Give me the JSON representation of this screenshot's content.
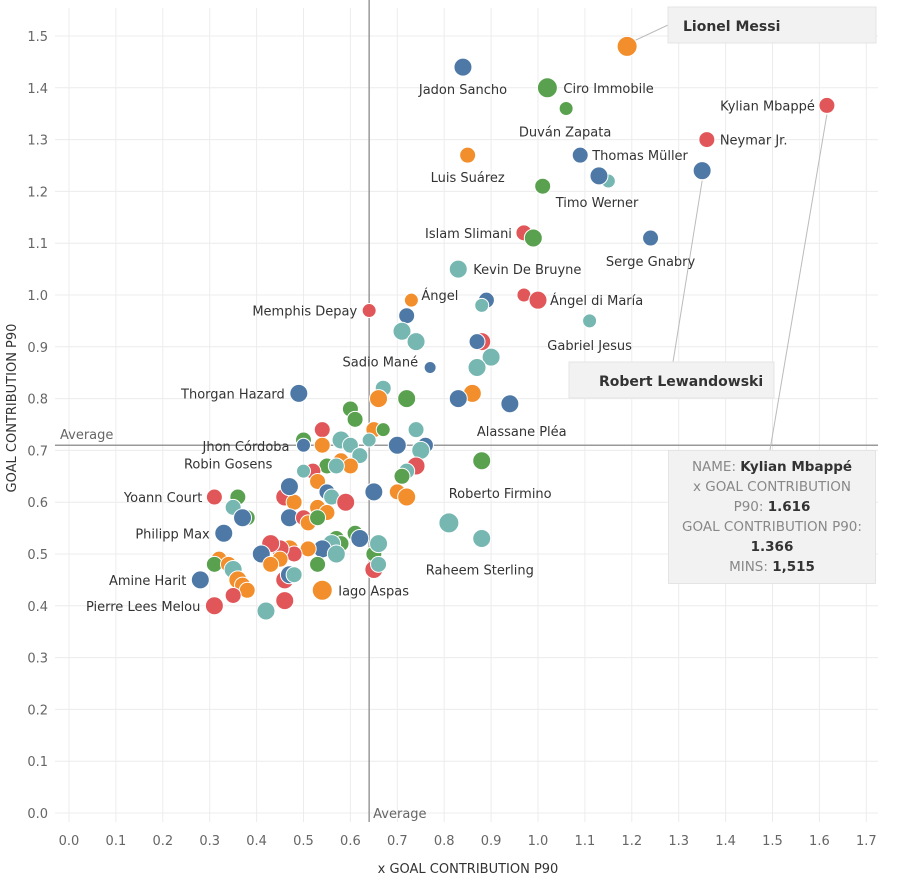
{
  "chart_data": {
    "type": "scatter",
    "title": "",
    "xlabel": "x GOAL CONTRIBUTION P90",
    "ylabel": "GOAL CONTRIBUTION P90",
    "xlim": [
      -0.03,
      1.72
    ],
    "ylim": [
      -0.02,
      1.56
    ],
    "x_ticks": [
      "0.0",
      "0.1",
      "0.2",
      "0.3",
      "0.4",
      "0.5",
      "0.6",
      "0.7",
      "0.8",
      "0.9",
      "1.0",
      "1.1",
      "1.2",
      "1.3",
      "1.4",
      "1.5",
      "1.6",
      "1.7"
    ],
    "y_ticks": [
      "0.0",
      "0.1",
      "0.2",
      "0.3",
      "0.4",
      "0.5",
      "0.6",
      "0.7",
      "0.8",
      "0.9",
      "1.0",
      "1.1",
      "1.2",
      "1.3",
      "1.4",
      "1.5"
    ],
    "grid": true,
    "reference_lines": {
      "x": {
        "value": 0.64,
        "label": "Average"
      },
      "y": {
        "value": 0.71,
        "label": "Average"
      }
    },
    "colors": {
      "orange": "#f28e2b",
      "blue": "#4e79a7",
      "red": "#e15759",
      "green": "#59a14f",
      "teal": "#76b7b2"
    },
    "labeled_points": [
      {
        "name": "Lionel Messi",
        "x": 1.19,
        "y": 1.48,
        "color": "#f28e2b",
        "size": 10
      },
      {
        "name": "Jadon Sancho",
        "x": 0.84,
        "y": 1.44,
        "color": "#4e79a7",
        "size": 9
      },
      {
        "name": "Ciro Immobile",
        "x": 1.02,
        "y": 1.4,
        "color": "#59a14f",
        "size": 10
      },
      {
        "name": "Kylian Mbappé",
        "x": 1.616,
        "y": 1.366,
        "color": "#e15759",
        "size": 8
      },
      {
        "name": "Duván Zapata",
        "x": 1.06,
        "y": 1.36,
        "color": "#59a14f",
        "size": 7
      },
      {
        "name": "Neymar Jr.",
        "x": 1.36,
        "y": 1.3,
        "color": "#e15759",
        "size": 8
      },
      {
        "name": "Thomas Müller",
        "x": 1.09,
        "y": 1.27,
        "color": "#4e79a7",
        "size": 8
      },
      {
        "name": "Luis Suárez",
        "x": 0.85,
        "y": 1.27,
        "color": "#f28e2b",
        "size": 8
      },
      {
        "name": "Timo Werner",
        "x": 1.01,
        "y": 1.21,
        "color": "#59a14f",
        "size": 8
      },
      {
        "name": "Islam Slimani",
        "x": 0.97,
        "y": 1.12,
        "color": "#e15759",
        "size": 8
      },
      {
        "name": "Serge Gnabry",
        "x": 1.24,
        "y": 1.11,
        "color": "#4e79a7",
        "size": 8
      },
      {
        "name": "Kevin De Bruyne",
        "x": 0.83,
        "y": 1.05,
        "color": "#76b7b2",
        "size": 9
      },
      {
        "name": "Ángel",
        "x": 0.73,
        "y": 0.99,
        "color": "#f28e2b",
        "size": 7
      },
      {
        "name": "Ángel di María",
        "x": 1.0,
        "y": 0.99,
        "color": "#e15759",
        "size": 9
      },
      {
        "name": "Memphis Depay",
        "x": 0.64,
        "y": 0.97,
        "color": "#e15759",
        "size": 7
      },
      {
        "name": "Gabriel Jesus",
        "x": 1.11,
        "y": 0.95,
        "color": "#76b7b2",
        "size": 7
      },
      {
        "name": "Sadio Mané",
        "x": 0.77,
        "y": 0.86,
        "color": "#4e79a7",
        "size": 6
      },
      {
        "name": "Thorgan Hazard",
        "x": 0.49,
        "y": 0.81,
        "color": "#4e79a7",
        "size": 9
      },
      {
        "name": "Alassane Pléa",
        "x": 0.94,
        "y": 0.79,
        "color": "#4e79a7",
        "size": 9
      },
      {
        "name": "Jhon Córdoba",
        "x": 0.5,
        "y": 0.71,
        "color": "#4e79a7",
        "size": 7
      },
      {
        "name": "Robin Gosens",
        "x": 0.47,
        "y": 0.63,
        "color": "#4e79a7",
        "size": 9
      },
      {
        "name": "Yoann Court",
        "x": 0.31,
        "y": 0.61,
        "color": "#e15759",
        "size": 8
      },
      {
        "name": "Roberto Firmino",
        "x": 0.88,
        "y": 0.68,
        "color": "#59a14f",
        "size": 9
      },
      {
        "name": "Philipp Max",
        "x": 0.33,
        "y": 0.54,
        "color": "#4e79a7",
        "size": 9
      },
      {
        "name": "Raheem Sterling",
        "x": 0.88,
        "y": 0.53,
        "color": "#76b7b2",
        "size": 9
      },
      {
        "name": "Amine Harit",
        "x": 0.28,
        "y": 0.45,
        "color": "#4e79a7",
        "size": 9
      },
      {
        "name": "Iago Aspas",
        "x": 0.54,
        "y": 0.43,
        "color": "#f28e2b",
        "size": 10
      },
      {
        "name": "Pierre Lees Melou",
        "x": 0.31,
        "y": 0.4,
        "color": "#e15759",
        "size": 9
      },
      {
        "name": "Robert Lewandowski",
        "x": 1.35,
        "y": 1.24,
        "color": "#4e79a7",
        "size": 9
      },
      {
        "name": "",
        "x": 1.15,
        "y": 1.22,
        "color": "#76b7b2",
        "size": 7
      },
      {
        "name": "",
        "x": 1.13,
        "y": 1.23,
        "color": "#4e79a7",
        "size": 9
      },
      {
        "name": "",
        "x": 0.99,
        "y": 1.11,
        "color": "#59a14f",
        "size": 9
      }
    ],
    "other_points": [
      {
        "x": 0.89,
        "y": 0.99,
        "color": "#4e79a7",
        "size": 8
      },
      {
        "x": 0.97,
        "y": 1.0,
        "color": "#e15759",
        "size": 7
      },
      {
        "x": 0.88,
        "y": 0.98,
        "color": "#76b7b2",
        "size": 7
      },
      {
        "x": 0.72,
        "y": 0.96,
        "color": "#4e79a7",
        "size": 8
      },
      {
        "x": 0.71,
        "y": 0.93,
        "color": "#76b7b2",
        "size": 9
      },
      {
        "x": 0.74,
        "y": 0.91,
        "color": "#76b7b2",
        "size": 9
      },
      {
        "x": 0.88,
        "y": 0.91,
        "color": "#e15759",
        "size": 9
      },
      {
        "x": 0.87,
        "y": 0.91,
        "color": "#4e79a7",
        "size": 8
      },
      {
        "x": 0.9,
        "y": 0.88,
        "color": "#76b7b2",
        "size": 9
      },
      {
        "x": 0.87,
        "y": 0.86,
        "color": "#76b7b2",
        "size": 9
      },
      {
        "x": 0.67,
        "y": 0.82,
        "color": "#76b7b2",
        "size": 8
      },
      {
        "x": 0.86,
        "y": 0.81,
        "color": "#f28e2b",
        "size": 9
      },
      {
        "x": 0.66,
        "y": 0.8,
        "color": "#f28e2b",
        "size": 9
      },
      {
        "x": 0.72,
        "y": 0.8,
        "color": "#59a14f",
        "size": 9
      },
      {
        "x": 0.83,
        "y": 0.8,
        "color": "#4e79a7",
        "size": 9
      },
      {
        "x": 0.6,
        "y": 0.78,
        "color": "#59a14f",
        "size": 8
      },
      {
        "x": 0.61,
        "y": 0.76,
        "color": "#59a14f",
        "size": 8
      },
      {
        "x": 0.54,
        "y": 0.74,
        "color": "#e15759",
        "size": 8
      },
      {
        "x": 0.65,
        "y": 0.74,
        "color": "#f28e2b",
        "size": 8
      },
      {
        "x": 0.67,
        "y": 0.74,
        "color": "#59a14f",
        "size": 7
      },
      {
        "x": 0.74,
        "y": 0.74,
        "color": "#76b7b2",
        "size": 8
      },
      {
        "x": 0.5,
        "y": 0.72,
        "color": "#59a14f",
        "size": 8
      },
      {
        "x": 0.58,
        "y": 0.72,
        "color": "#76b7b2",
        "size": 9
      },
      {
        "x": 0.6,
        "y": 0.71,
        "color": "#76b7b2",
        "size": 8
      },
      {
        "x": 0.54,
        "y": 0.71,
        "color": "#f28e2b",
        "size": 8
      },
      {
        "x": 0.64,
        "y": 0.72,
        "color": "#76b7b2",
        "size": 7
      },
      {
        "x": 0.7,
        "y": 0.71,
        "color": "#4e79a7",
        "size": 9
      },
      {
        "x": 0.76,
        "y": 0.71,
        "color": "#4e79a7",
        "size": 8
      },
      {
        "x": 0.75,
        "y": 0.7,
        "color": "#76b7b2",
        "size": 9
      },
      {
        "x": 0.62,
        "y": 0.69,
        "color": "#76b7b2",
        "size": 8
      },
      {
        "x": 0.58,
        "y": 0.68,
        "color": "#f28e2b",
        "size": 8
      },
      {
        "x": 0.55,
        "y": 0.67,
        "color": "#59a14f",
        "size": 8
      },
      {
        "x": 0.52,
        "y": 0.66,
        "color": "#e15759",
        "size": 8
      },
      {
        "x": 0.6,
        "y": 0.67,
        "color": "#f28e2b",
        "size": 8
      },
      {
        "x": 0.57,
        "y": 0.67,
        "color": "#76b7b2",
        "size": 8
      },
      {
        "x": 0.5,
        "y": 0.66,
        "color": "#76b7b2",
        "size": 7
      },
      {
        "x": 0.74,
        "y": 0.67,
        "color": "#e15759",
        "size": 9
      },
      {
        "x": 0.72,
        "y": 0.66,
        "color": "#76b7b2",
        "size": 8
      },
      {
        "x": 0.71,
        "y": 0.65,
        "color": "#59a14f",
        "size": 8
      },
      {
        "x": 0.53,
        "y": 0.64,
        "color": "#f28e2b",
        "size": 8
      },
      {
        "x": 0.7,
        "y": 0.62,
        "color": "#f28e2b",
        "size": 8
      },
      {
        "x": 0.72,
        "y": 0.61,
        "color": "#f28e2b",
        "size": 9
      },
      {
        "x": 0.65,
        "y": 0.62,
        "color": "#4e79a7",
        "size": 9
      },
      {
        "x": 0.55,
        "y": 0.62,
        "color": "#4e79a7",
        "size": 8
      },
      {
        "x": 0.56,
        "y": 0.61,
        "color": "#76b7b2",
        "size": 8
      },
      {
        "x": 0.59,
        "y": 0.6,
        "color": "#e15759",
        "size": 9
      },
      {
        "x": 0.46,
        "y": 0.61,
        "color": "#e15759",
        "size": 9
      },
      {
        "x": 0.48,
        "y": 0.6,
        "color": "#f28e2b",
        "size": 8
      },
      {
        "x": 0.36,
        "y": 0.61,
        "color": "#59a14f",
        "size": 8
      },
      {
        "x": 0.35,
        "y": 0.59,
        "color": "#76b7b2",
        "size": 8
      },
      {
        "x": 0.53,
        "y": 0.59,
        "color": "#f28e2b",
        "size": 8
      },
      {
        "x": 0.55,
        "y": 0.58,
        "color": "#f28e2b",
        "size": 8
      },
      {
        "x": 0.38,
        "y": 0.57,
        "color": "#59a14f",
        "size": 8
      },
      {
        "x": 0.37,
        "y": 0.57,
        "color": "#4e79a7",
        "size": 9
      },
      {
        "x": 0.47,
        "y": 0.57,
        "color": "#4e79a7",
        "size": 9
      },
      {
        "x": 0.5,
        "y": 0.57,
        "color": "#e15759",
        "size": 8
      },
      {
        "x": 0.51,
        "y": 0.56,
        "color": "#f28e2b",
        "size": 8
      },
      {
        "x": 0.53,
        "y": 0.57,
        "color": "#59a14f",
        "size": 8
      },
      {
        "x": 0.61,
        "y": 0.54,
        "color": "#59a14f",
        "size": 8
      },
      {
        "x": 0.62,
        "y": 0.53,
        "color": "#4e79a7",
        "size": 9
      },
      {
        "x": 0.57,
        "y": 0.53,
        "color": "#59a14f",
        "size": 8
      },
      {
        "x": 0.58,
        "y": 0.52,
        "color": "#59a14f",
        "size": 8
      },
      {
        "x": 0.56,
        "y": 0.52,
        "color": "#76b7b2",
        "size": 9
      },
      {
        "x": 0.54,
        "y": 0.51,
        "color": "#4e79a7",
        "size": 9
      },
      {
        "x": 0.51,
        "y": 0.51,
        "color": "#f28e2b",
        "size": 8
      },
      {
        "x": 0.47,
        "y": 0.51,
        "color": "#f28e2b",
        "size": 9
      },
      {
        "x": 0.48,
        "y": 0.5,
        "color": "#e15759",
        "size": 8
      },
      {
        "x": 0.45,
        "y": 0.51,
        "color": "#e15759",
        "size": 9
      },
      {
        "x": 0.43,
        "y": 0.52,
        "color": "#e15759",
        "size": 9
      },
      {
        "x": 0.41,
        "y": 0.5,
        "color": "#4e79a7",
        "size": 9
      },
      {
        "x": 0.45,
        "y": 0.49,
        "color": "#f28e2b",
        "size": 8
      },
      {
        "x": 0.43,
        "y": 0.48,
        "color": "#f28e2b",
        "size": 8
      },
      {
        "x": 0.32,
        "y": 0.49,
        "color": "#f28e2b",
        "size": 8
      },
      {
        "x": 0.31,
        "y": 0.48,
        "color": "#59a14f",
        "size": 8
      },
      {
        "x": 0.34,
        "y": 0.48,
        "color": "#f28e2b",
        "size": 8
      },
      {
        "x": 0.35,
        "y": 0.47,
        "color": "#76b7b2",
        "size": 9
      },
      {
        "x": 0.36,
        "y": 0.45,
        "color": "#f28e2b",
        "size": 9
      },
      {
        "x": 0.37,
        "y": 0.44,
        "color": "#f28e2b",
        "size": 8
      },
      {
        "x": 0.38,
        "y": 0.43,
        "color": "#f28e2b",
        "size": 8
      },
      {
        "x": 0.35,
        "y": 0.42,
        "color": "#e15759",
        "size": 8
      },
      {
        "x": 0.46,
        "y": 0.45,
        "color": "#e15759",
        "size": 9
      },
      {
        "x": 0.47,
        "y": 0.46,
        "color": "#4e79a7",
        "size": 9
      },
      {
        "x": 0.48,
        "y": 0.46,
        "color": "#76b7b2",
        "size": 8
      },
      {
        "x": 0.46,
        "y": 0.41,
        "color": "#e15759",
        "size": 9
      },
      {
        "x": 0.42,
        "y": 0.39,
        "color": "#76b7b2",
        "size": 9
      },
      {
        "x": 0.53,
        "y": 0.48,
        "color": "#59a14f",
        "size": 8
      },
      {
        "x": 0.57,
        "y": 0.5,
        "color": "#76b7b2",
        "size": 9
      },
      {
        "x": 0.65,
        "y": 0.5,
        "color": "#59a14f",
        "size": 8
      },
      {
        "x": 0.65,
        "y": 0.47,
        "color": "#e15759",
        "size": 9
      },
      {
        "x": 0.66,
        "y": 0.52,
        "color": "#76b7b2",
        "size": 9
      },
      {
        "x": 0.81,
        "y": 0.56,
        "color": "#76b7b2",
        "size": 10
      },
      {
        "x": 0.66,
        "y": 0.48,
        "color": "#76b7b2",
        "size": 8
      }
    ]
  },
  "callouts": {
    "messi": "Lionel Messi",
    "lewandowski": "Robert Lewandowski"
  },
  "tooltip": {
    "name_label": "NAME:",
    "name_value": "Kylian Mbappé",
    "xgc_label_1": "x GOAL CONTRIBUTION",
    "xgc_label_2": "P90:",
    "xgc_value": "1.616",
    "gc_label": "GOAL CONTRIBUTION P90:",
    "gc_value": "1.366",
    "mins_label": "MINS:",
    "mins_value": "1,515"
  }
}
